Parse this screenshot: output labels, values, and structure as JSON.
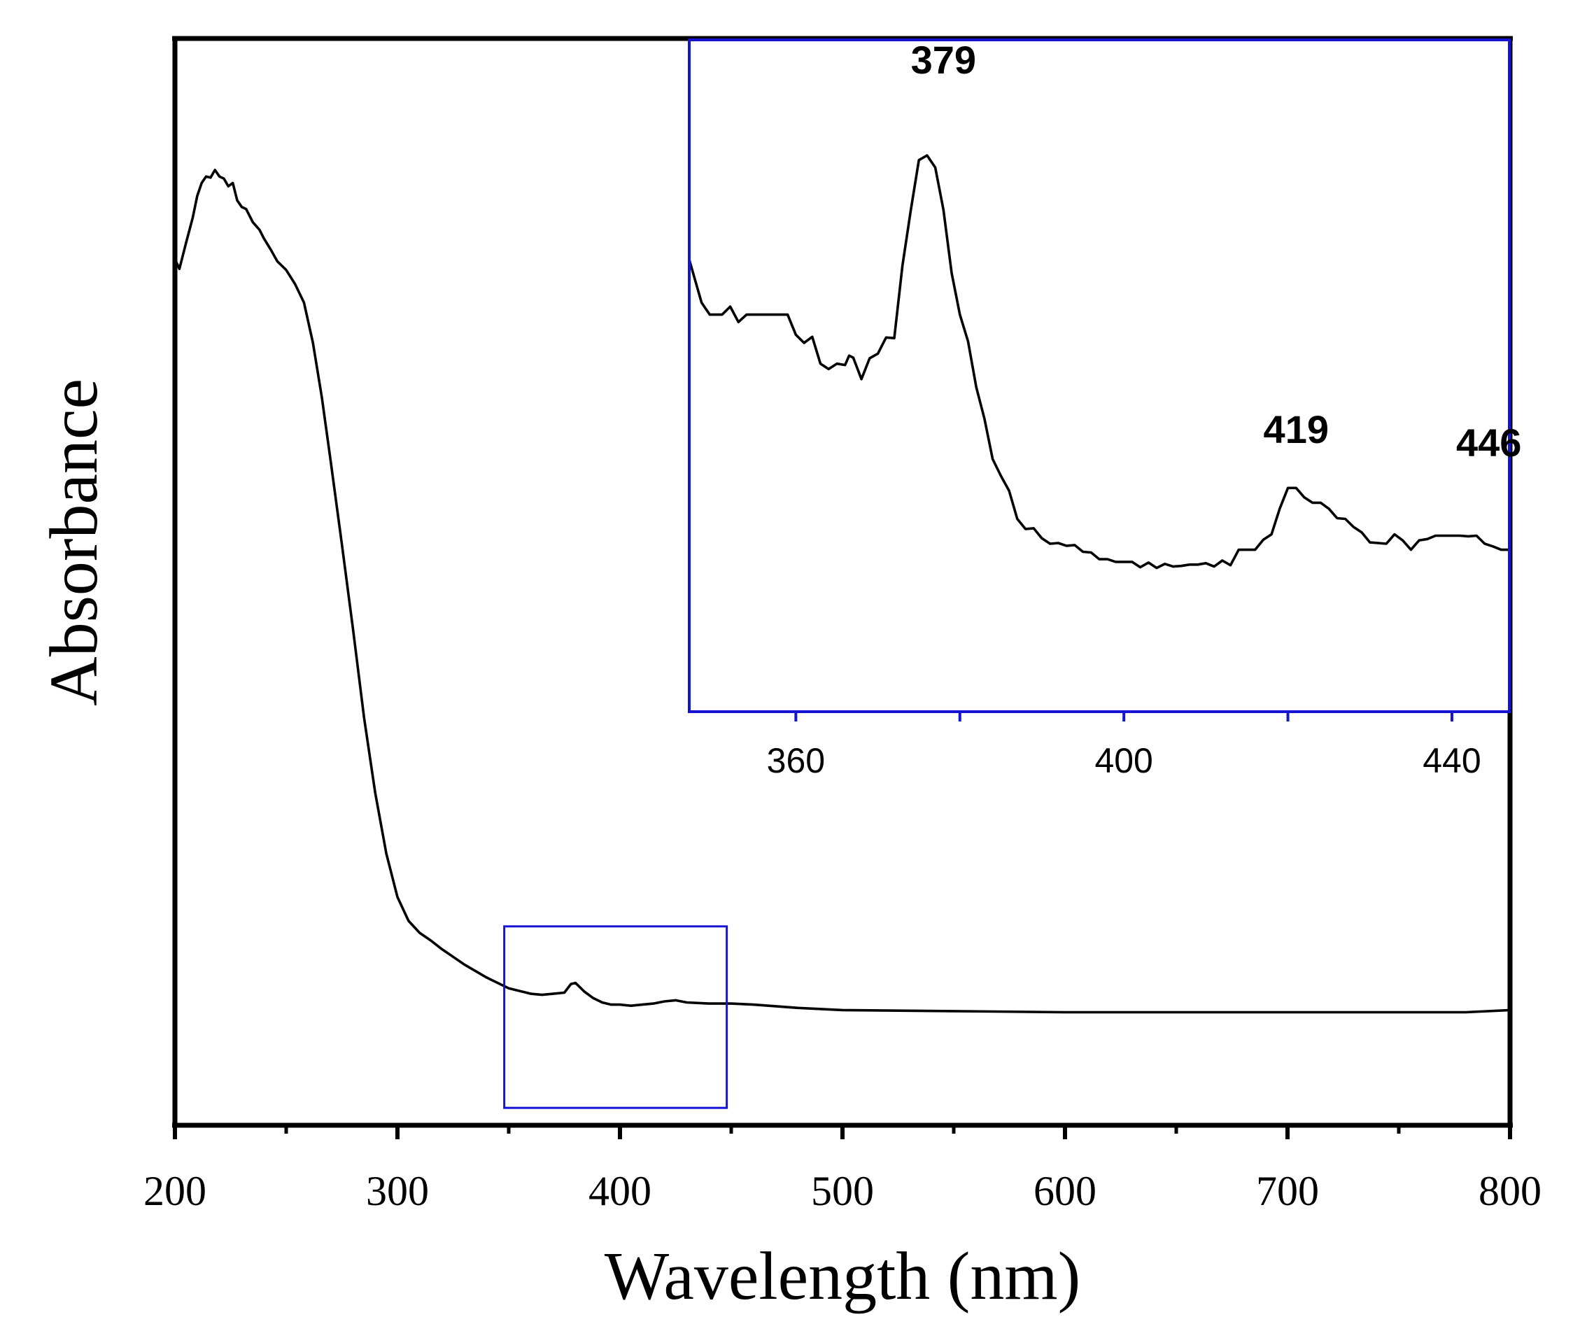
{
  "chart_data": [
    {
      "type": "line",
      "name": "main",
      "xlabel": "Wavelength (nm)",
      "ylabel": "Absorbance",
      "xlim": [
        200,
        800
      ],
      "ylim": [
        0,
        1.0
      ],
      "x_ticks": [
        200,
        300,
        400,
        500,
        600,
        700,
        800
      ],
      "y_ticks": [],
      "grid": false,
      "series": [
        {
          "name": "absorbance",
          "x": [
            200,
            202,
            205,
            208,
            210,
            212,
            214,
            216,
            218,
            220,
            222,
            224,
            226,
            228,
            230,
            232,
            235,
            238,
            240,
            243,
            246,
            250,
            254,
            258,
            262,
            266,
            270,
            275,
            280,
            285,
            290,
            295,
            300,
            305,
            310,
            315,
            320,
            330,
            340,
            350,
            360,
            365,
            370,
            375,
            378,
            380,
            384,
            388,
            392,
            396,
            400,
            405,
            410,
            415,
            420,
            425,
            430,
            440,
            450,
            460,
            480,
            500,
            550,
            600,
            650,
            700,
            750,
            780,
            800
          ],
          "y": [
            0.797,
            0.788,
            0.812,
            0.835,
            0.855,
            0.867,
            0.873,
            0.872,
            0.879,
            0.873,
            0.871,
            0.864,
            0.867,
            0.851,
            0.845,
            0.843,
            0.831,
            0.824,
            0.816,
            0.806,
            0.795,
            0.787,
            0.774,
            0.757,
            0.72,
            0.67,
            0.611,
            0.535,
            0.457,
            0.375,
            0.306,
            0.25,
            0.21,
            0.188,
            0.177,
            0.17,
            0.162,
            0.148,
            0.136,
            0.126,
            0.121,
            0.12,
            0.121,
            0.122,
            0.13,
            0.131,
            0.123,
            0.117,
            0.113,
            0.111,
            0.111,
            0.11,
            0.111,
            0.112,
            0.114,
            0.115,
            0.113,
            0.112,
            0.112,
            0.111,
            0.108,
            0.106,
            0.105,
            0.104,
            0.104,
            0.104,
            0.104,
            0.104,
            0.106
          ]
        }
      ],
      "zoom_box": {
        "xlim": [
          348,
          448
        ],
        "ylim": [
          0.016,
          0.183
        ]
      }
    },
    {
      "type": "line",
      "name": "inset",
      "xlim": [
        347,
        447
      ],
      "ylim": [
        0,
        1.0
      ],
      "x_ticks": [
        360,
        400,
        440
      ],
      "x_minor_ticks": [
        380,
        420
      ],
      "grid": false,
      "series": [
        {
          "name": "absorbance (zoom)",
          "x": [
            347,
            348.5,
            349.5,
            351,
            352,
            353,
            354,
            355,
            356,
            357,
            359,
            360,
            361,
            362,
            363,
            364,
            365,
            366,
            366.5,
            367,
            368,
            369,
            370,
            371,
            372,
            373,
            374,
            375,
            376,
            377,
            378,
            379,
            380,
            381,
            382,
            383,
            384,
            385,
            386,
            387,
            388,
            389,
            390,
            391,
            392,
            393,
            394,
            395,
            396,
            397,
            398,
            399,
            400,
            401,
            402,
            403,
            404,
            405,
            406,
            407,
            408,
            409,
            410,
            411,
            412,
            413,
            414,
            415,
            416,
            417,
            418,
            419,
            420,
            421,
            422,
            423,
            424,
            425,
            426,
            427,
            428,
            429,
            430,
            431,
            432,
            433,
            434,
            435,
            436,
            437,
            438,
            439,
            440,
            441,
            442,
            443,
            444,
            445,
            446,
            447
          ],
          "y": [
            0.673,
            0.609,
            0.591,
            0.591,
            0.603,
            0.58,
            0.591,
            0.591,
            0.591,
            0.591,
            0.591,
            0.561,
            0.549,
            0.558,
            0.518,
            0.51,
            0.518,
            0.516,
            0.53,
            0.527,
            0.495,
            0.526,
            0.533,
            0.557,
            0.556,
            0.664,
            0.745,
            0.821,
            0.828,
            0.81,
            0.747,
            0.653,
            0.591,
            0.551,
            0.483,
            0.436,
            0.376,
            0.351,
            0.329,
            0.287,
            0.272,
            0.273,
            0.258,
            0.25,
            0.251,
            0.247,
            0.248,
            0.238,
            0.237,
            0.227,
            0.227,
            0.223,
            0.223,
            0.223,
            0.215,
            0.222,
            0.214,
            0.22,
            0.216,
            0.217,
            0.219,
            0.219,
            0.221,
            0.216,
            0.225,
            0.218,
            0.241,
            0.241,
            0.241,
            0.256,
            0.264,
            0.302,
            0.333,
            0.333,
            0.319,
            0.311,
            0.311,
            0.302,
            0.288,
            0.287,
            0.275,
            0.267,
            0.252,
            0.251,
            0.25,
            0.264,
            0.255,
            0.241,
            0.255,
            0.257,
            0.262,
            0.262,
            0.262,
            0.262,
            0.261,
            0.262,
            0.25,
            0.246,
            0.241,
            0.241
          ]
        }
      ],
      "annotations": [
        {
          "text": "379",
          "x": 378,
          "y": 0.95
        },
        {
          "text": "419",
          "x": 421,
          "y": 0.4
        },
        {
          "text": "446",
          "x": 444.5,
          "y": 0.38
        }
      ],
      "frame_color": "#1414d2"
    }
  ],
  "colors": {
    "line": "#000000",
    "axes": "#000000",
    "highlight": "#1414d2"
  }
}
